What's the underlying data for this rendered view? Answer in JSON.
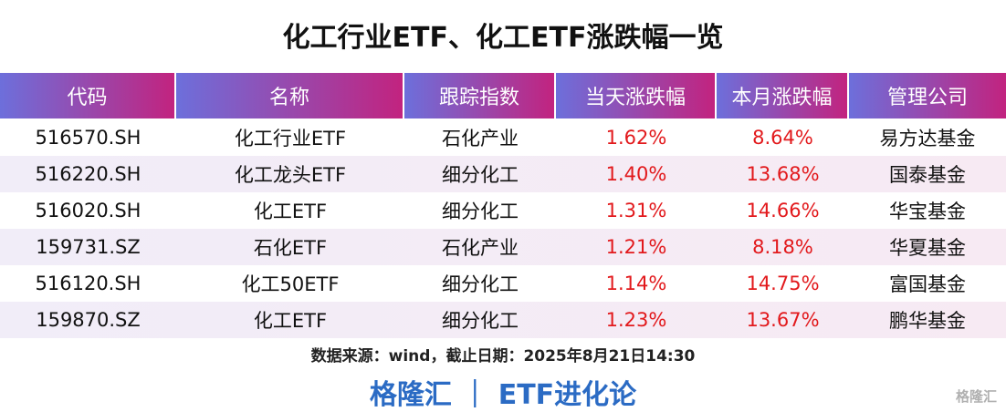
{
  "header": {
    "title": "化工行业ETF、化工ETF涨跌幅一览"
  },
  "table": {
    "columns": [
      "代码",
      "名称",
      "跟踪指数",
      "当天涨跌幅",
      "本月涨跌幅",
      "管理公司"
    ],
    "rows": [
      [
        "516570.SH",
        "化工行业ETF",
        "石化产业",
        "1.62%",
        "8.64%",
        "易方达基金"
      ],
      [
        "516220.SH",
        "化工龙头ETF",
        "细分化工",
        "1.40%",
        "13.68%",
        "国泰基金"
      ],
      [
        "516020.SH",
        "化工ETF",
        "细分化工",
        "1.31%",
        "14.66%",
        "华宝基金"
      ],
      [
        "159731.SZ",
        "石化ETF",
        "石化产业",
        "1.21%",
        "8.18%",
        "华夏基金"
      ],
      [
        "516120.SH",
        "化工50ETF",
        "细分化工",
        "1.14%",
        "14.75%",
        "富国基金"
      ],
      [
        "159870.SZ",
        "化工ETF",
        "细分化工",
        "1.23%",
        "13.67%",
        "鹏华基金"
      ]
    ]
  },
  "footer": {
    "source": "数据来源：wind，截止日期：2025年8月21日14:30",
    "brand": "格隆汇 ｜ ETF进化论",
    "watermark": "格隆汇"
  }
}
